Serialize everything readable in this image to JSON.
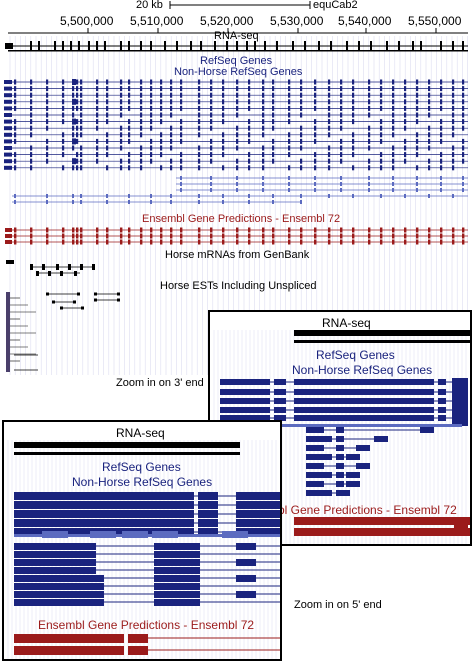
{
  "scale": {
    "bar_label": "20 kb",
    "assembly": "equCab2"
  },
  "ruler": {
    "ticks": [
      "5,500,000",
      "5,510,000",
      "5,520,000",
      "5,530,000",
      "5,540,000",
      "5,550,000"
    ]
  },
  "tracks": {
    "rnaseq": "RNA-seq",
    "refseq": "RefSeq Genes",
    "nonhorse": "Non-Horse RefSeq Genes",
    "ensembl": "Ensembl Gene Predictions - Ensembl 72",
    "mrna": "Horse mRNAs from GenBank",
    "ests": "Horse ESTs Including Unspliced"
  },
  "zoom3": {
    "rnaseq": "RNA-seq",
    "refseq": "RefSeq Genes",
    "nonhorse": "Non-Horse RefSeq Genes",
    "ensembl_partial": "bl Gene Predictions - Ensembl 72",
    "caption": "Zoom in on 3' end"
  },
  "zoom5": {
    "rnaseq": "RNA-seq",
    "refseq": "RefSeq Genes",
    "nonhorse": "Non-Horse RefSeq Genes",
    "ensembl": "Ensembl Gene Predictions - Ensembl 72",
    "caption": "Zoom in on 5' end"
  },
  "colors": {
    "refseq": "#1a237e",
    "nonhorse": "#5c6bc0",
    "ensembl": "#9b1b1b",
    "black": "#000000",
    "grid": "#dcdcf0"
  }
}
